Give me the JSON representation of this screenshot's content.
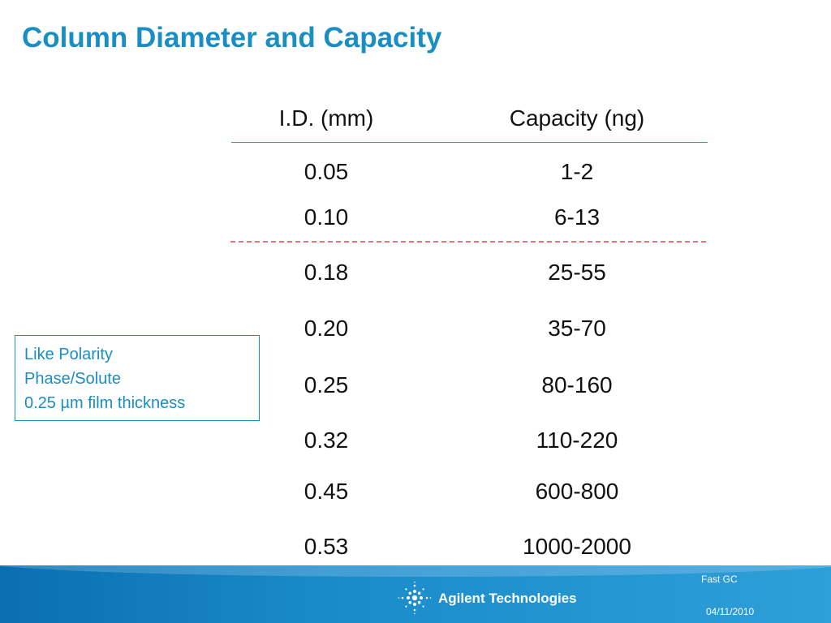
{
  "slide": {
    "title": "Column Diameter and Capacity"
  },
  "table": {
    "headers": [
      "I.D. (mm)",
      "Capacity (ng)"
    ],
    "rows": [
      {
        "id": "0.05",
        "capacity": "1-2"
      },
      {
        "id": "0.10",
        "capacity": "6-13"
      },
      {
        "id": "0.18",
        "capacity": "25-55"
      },
      {
        "id": "0.20",
        "capacity": "35-70"
      },
      {
        "id": "0.25",
        "capacity": "80-160"
      },
      {
        "id": "0.32",
        "capacity": "110-220"
      },
      {
        "id": "0.45",
        "capacity": "600-800"
      },
      {
        "id": "0.53",
        "capacity": "1000-2000"
      }
    ]
  },
  "note": {
    "lines": [
      "Like Polarity",
      "Phase/Solute",
      "0.25 µm film thickness"
    ]
  },
  "footer": {
    "topic": "Fast GC",
    "date": "04/11/2010",
    "logo_text": "Agilent Technologies",
    "logo_icon": "agilent-spark-icon"
  },
  "colors": {
    "title": "#1a8ec2",
    "header_rule": "#2a9cc9",
    "dashed_rule": "#e8737a",
    "note": "#1a8ec2",
    "footer_band": "#1a8bca"
  }
}
